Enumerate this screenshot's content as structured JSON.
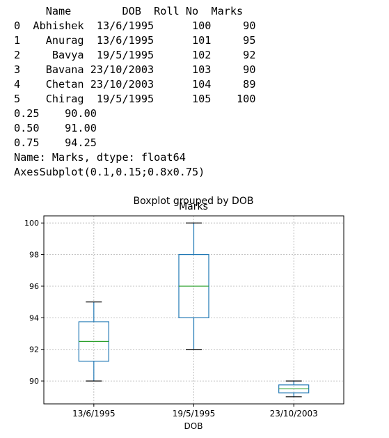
{
  "output": {
    "lines": [
      "     Name        DOB  Roll No  Marks",
      "0  Abhishek  13/6/1995      100     90",
      "1    Anurag  13/6/1995      101     95",
      "2     Bavya  19/5/1995      102     92",
      "3    Bavana 23/10/2003      103     90",
      "4    Chetan 23/10/2003      104     89",
      "5    Chirag  19/5/1995      105    100",
      "0.25    90.00",
      "0.50    91.00",
      "0.75    94.25",
      "Name: Marks, dtype: float64",
      "AxesSubplot(0.1,0.15;0.8x0.75)"
    ]
  },
  "chart_data": {
    "type": "boxplot",
    "title": "Boxplot grouped by DOB",
    "subtitle": "Marks",
    "xlabel": "DOB",
    "ylabel": "",
    "categories": [
      "13/6/1995",
      "19/5/1995",
      "23/10/2003"
    ],
    "boxes": [
      {
        "whislo": 90,
        "q1": 91.25,
        "med": 92.5,
        "q3": 93.75,
        "whishi": 95
      },
      {
        "whislo": 92,
        "q1": 94,
        "med": 96,
        "q3": 98,
        "whishi": 100
      },
      {
        "whislo": 89,
        "q1": 89.25,
        "med": 89.5,
        "q3": 89.75,
        "whishi": 90
      }
    ],
    "ylim": [
      88.55,
      100.45
    ],
    "yticks": [
      90,
      92,
      94,
      96,
      98,
      100
    ],
    "grid": true,
    "box_color": "#1f77b4",
    "median_color": "#2ca02c",
    "grid_color": "#b0b0b0"
  }
}
